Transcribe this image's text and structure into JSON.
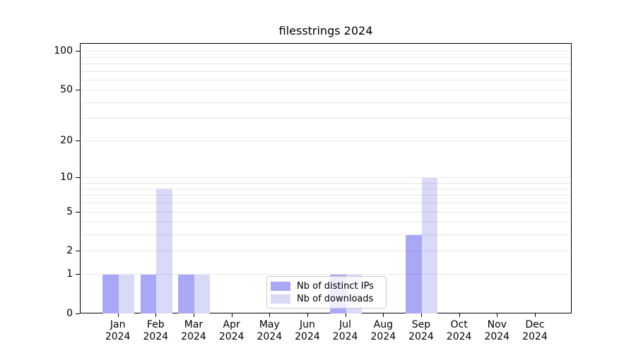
{
  "chart_data": {
    "type": "bar",
    "title": "filesstrings 2024",
    "year_label": "2024",
    "categories": [
      "Jan",
      "Feb",
      "Mar",
      "Apr",
      "May",
      "Jun",
      "Jul",
      "Aug",
      "Sep",
      "Oct",
      "Nov",
      "Dec"
    ],
    "series": [
      {
        "name": "Nb of distinct IPs",
        "color": "#a8a8f6",
        "values": [
          1,
          1,
          1,
          0,
          0,
          0,
          1,
          0,
          3,
          0,
          0,
          0
        ]
      },
      {
        "name": "Nb of downloads",
        "color": "#d9d9f8",
        "values": [
          1,
          8,
          1,
          0,
          0,
          0,
          1,
          0,
          10,
          0,
          0,
          0
        ]
      }
    ],
    "yscale": "log10(1+value)",
    "ylim": [
      0,
      115
    ],
    "yticks": [
      0,
      1,
      2,
      5,
      10,
      20,
      50,
      100
    ],
    "grid_values": [
      1,
      2,
      3,
      4,
      5,
      6,
      7,
      8,
      9,
      10,
      20,
      30,
      40,
      50,
      60,
      70,
      80,
      90,
      100
    ],
    "grid": "on",
    "legend_position": "bottom-center",
    "colors": {
      "axis": "#000000",
      "grid": "#e8e8e8",
      "legend_border": "#cccccc",
      "background": "#ffffff"
    }
  }
}
